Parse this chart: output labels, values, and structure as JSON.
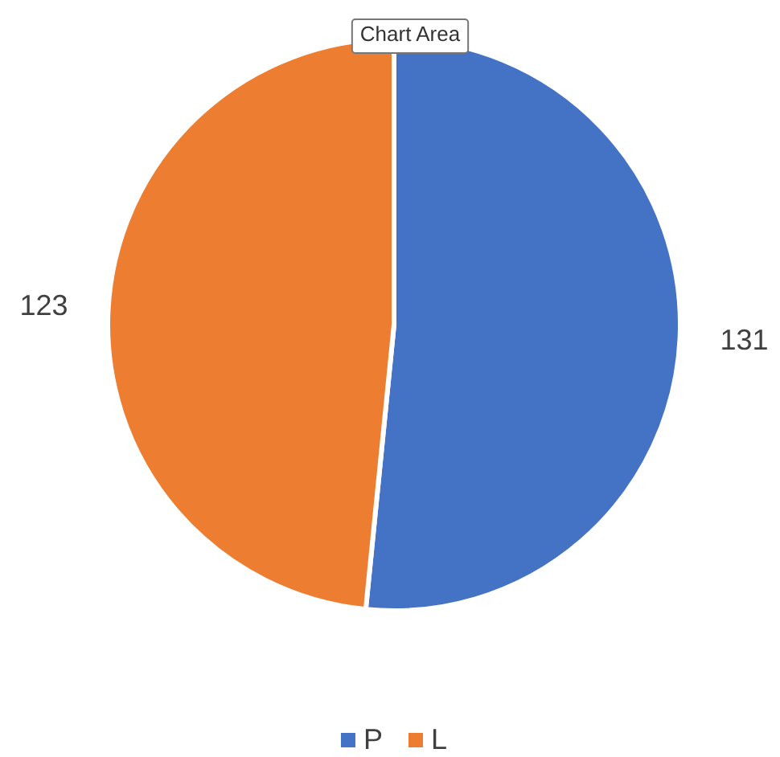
{
  "chart_data": {
    "type": "pie",
    "categories": [
      "P",
      "L"
    ],
    "values": [
      131,
      123
    ],
    "colors": [
      "#4472c4",
      "#ed7d31"
    ],
    "data_labels": true,
    "legend": "bottom",
    "annotations": [
      "Chart Area"
    ]
  }
}
